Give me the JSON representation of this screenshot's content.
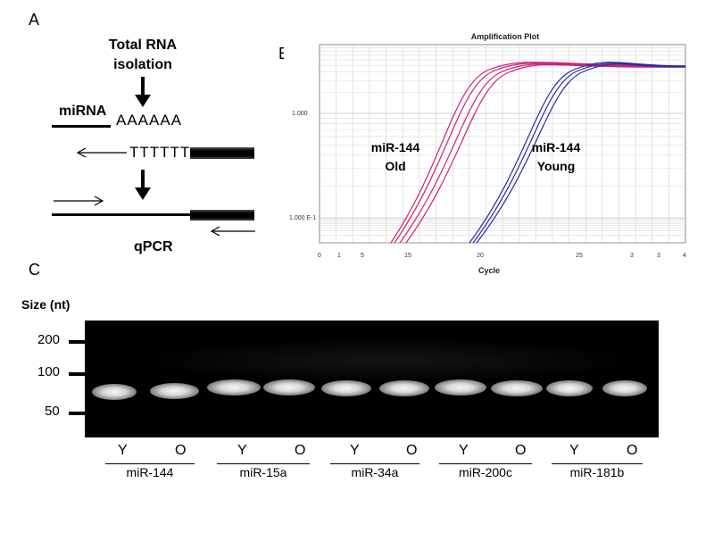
{
  "panels": {
    "a": {
      "label": "A",
      "step1": "Total RNA",
      "step1b": "isolation",
      "mirna_label": "miRNA",
      "polya": "AAAAAA",
      "polyt": "TTTTTT",
      "qpcr_label": "qPCR"
    },
    "b": {
      "label": "B",
      "plot_title": "Amplification Plot",
      "xlabel": "Cycle",
      "y_tick_1": "1.000",
      "y_tick_01": "1.000 E-1",
      "annot_old_1": "miR-144",
      "annot_old_2": "Old",
      "annot_young_1": "miR-144",
      "annot_young_2": "Young",
      "x_ticks": [
        "0",
        "1",
        "5",
        "15",
        "20",
        "25",
        "3",
        "3",
        "4"
      ]
    },
    "c": {
      "label": "C",
      "size_title": "Size (nt)",
      "size_markers": [
        "200",
        "100",
        "50"
      ],
      "lane_labels": [
        "Y",
        "O",
        "Y",
        "O",
        "Y",
        "O",
        "Y",
        "O",
        "Y",
        "O"
      ],
      "groups": [
        "miR-144",
        "miR-15a",
        "miR-34a",
        "miR-200c",
        "miR-181b"
      ]
    }
  },
  "chart_data": {
    "type": "line",
    "title": "Amplification Plot",
    "xlabel": "Cycle",
    "ylabel": "",
    "yscale": "log",
    "series": [
      {
        "name": "miR-144 Old",
        "color": "#cc2277",
        "threshold_cycle": 16
      },
      {
        "name": "miR-144 Young",
        "color": "#2222aa",
        "threshold_cycle": 21.5
      }
    ]
  },
  "colors": {
    "old_curve": "#cc2277",
    "young_curve": "#2a2aa8",
    "gel_bg": "#000000"
  }
}
